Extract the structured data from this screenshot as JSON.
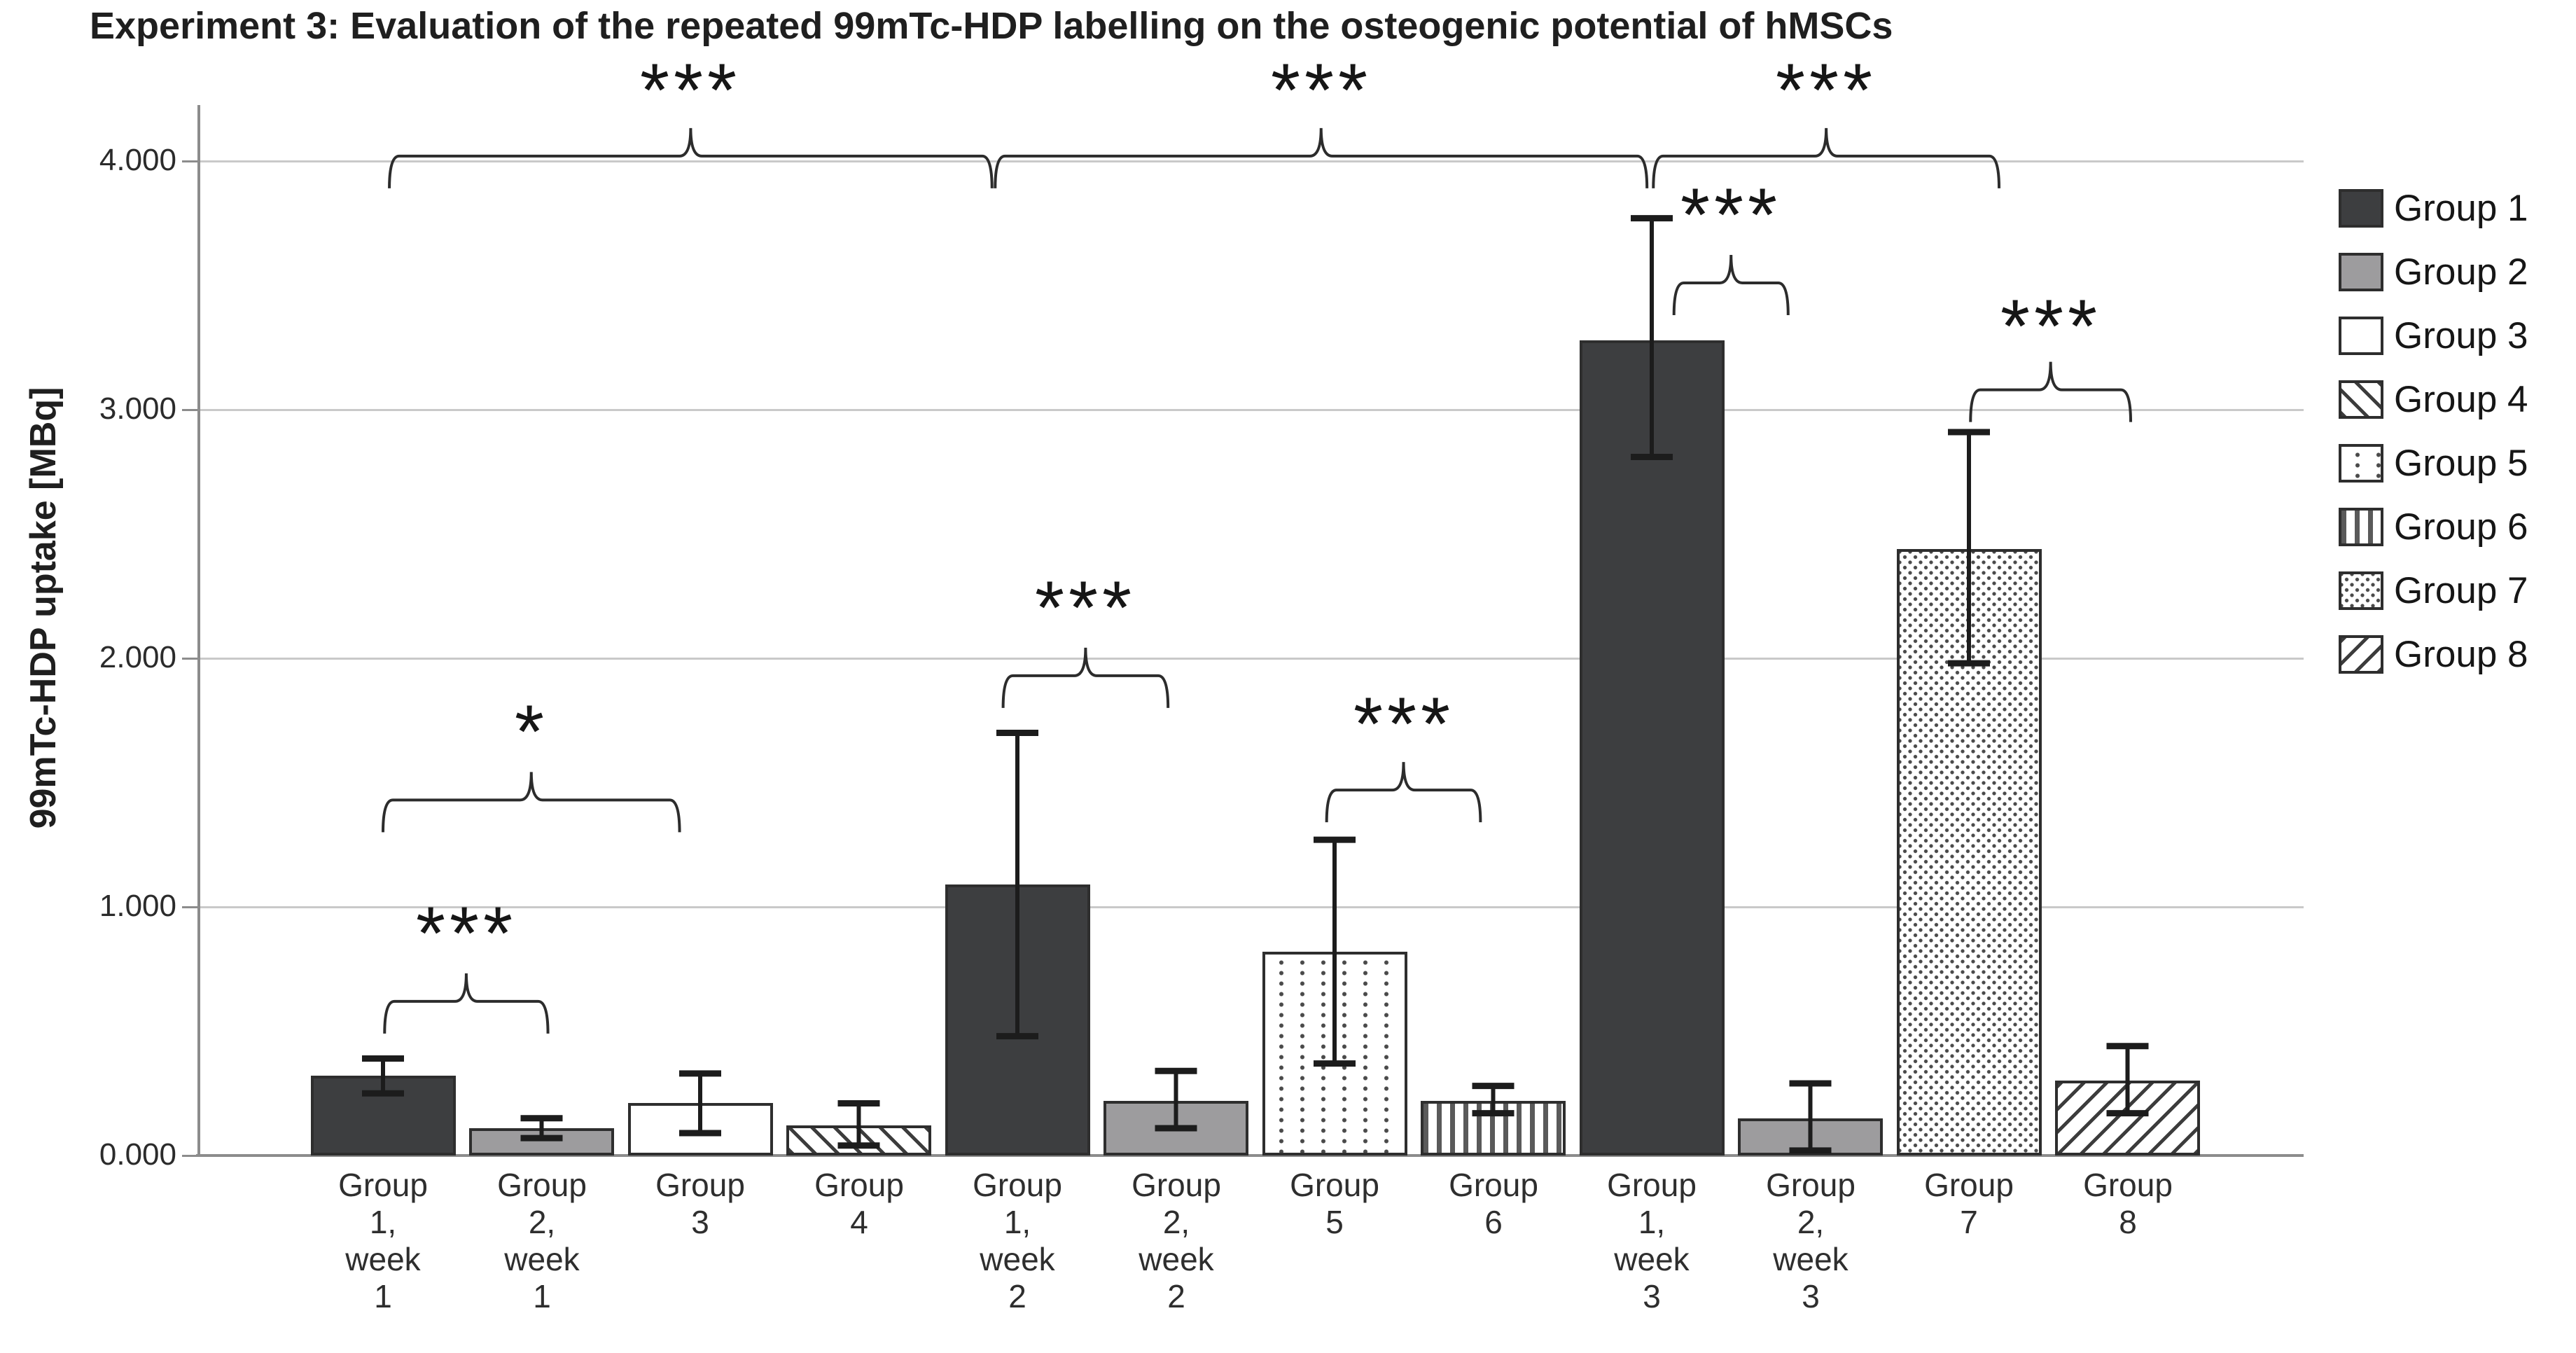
{
  "title": "Experiment 3: Evaluation of the repeated 99mTc-HDP labelling on the osteogenic potential of hMSCs",
  "y_axis": {
    "label": "99mTc-HDP uptake [MBq]"
  },
  "legend": {
    "items": [
      {
        "label": "Group 1",
        "pattern": "g1",
        "swatch": "solid-dark-gray"
      },
      {
        "label": "Group 2",
        "pattern": "g2",
        "swatch": "solid-medium-gray"
      },
      {
        "label": "Group 3",
        "pattern": "g3",
        "swatch": "white"
      },
      {
        "label": "Group 4",
        "pattern": "g4",
        "swatch": "backslash-hatch"
      },
      {
        "label": "Group 5",
        "pattern": "g5",
        "swatch": "sparse-dots"
      },
      {
        "label": "Group 6",
        "pattern": "g6",
        "swatch": "vertical-stripes"
      },
      {
        "label": "Group 7",
        "pattern": "g7",
        "swatch": "dense-dots"
      },
      {
        "label": "Group 8",
        "pattern": "g8",
        "swatch": "forward-slash-hatch"
      }
    ]
  },
  "chart_data": {
    "type": "bar",
    "title": "Experiment 3: Evaluation of the repeated 99mTc-HDP labelling on the osteogenic potential of hMSCs",
    "ylabel": "99mTc-HDP uptake [MBq]",
    "ylim": [
      0,
      4.34
    ],
    "grid": "horizontal",
    "legend_position": "right",
    "yticks": [
      {
        "value": 0,
        "label": "0.000"
      },
      {
        "value": 1,
        "label": "1.000"
      },
      {
        "value": 2,
        "label": "2.000"
      },
      {
        "value": 3,
        "label": "3.000"
      },
      {
        "value": 4,
        "label": "4.000"
      }
    ],
    "bars": [
      {
        "label_lines": [
          "Group",
          "1,",
          "week",
          "1"
        ],
        "group": "Group 1",
        "pattern": "g1",
        "value": 0.32,
        "err_low": 0.25,
        "err_high": 0.39
      },
      {
        "label_lines": [
          "Group",
          "2,",
          "week",
          "1"
        ],
        "group": "Group 2",
        "pattern": "g2",
        "value": 0.11,
        "err_low": 0.07,
        "err_high": 0.15
      },
      {
        "label_lines": [
          "Group",
          "3"
        ],
        "group": "Group 3",
        "pattern": "g3",
        "value": 0.21,
        "err_low": 0.09,
        "err_high": 0.33
      },
      {
        "label_lines": [
          "Group",
          "4"
        ],
        "group": "Group 4",
        "pattern": "g4",
        "value": 0.12,
        "err_low": 0.04,
        "err_high": 0.21
      },
      {
        "label_lines": [
          "Group",
          "1,",
          "week",
          "2"
        ],
        "group": "Group 1",
        "pattern": "g1",
        "value": 1.09,
        "err_low": 0.48,
        "err_high": 1.7
      },
      {
        "label_lines": [
          "Group",
          "2,",
          "week",
          "2"
        ],
        "group": "Group 2",
        "pattern": "g2",
        "value": 0.22,
        "err_low": 0.11,
        "err_high": 0.34
      },
      {
        "label_lines": [
          "Group",
          "5"
        ],
        "group": "Group 5",
        "pattern": "g5",
        "value": 0.82,
        "err_low": 0.37,
        "err_high": 1.27
      },
      {
        "label_lines": [
          "Group",
          "6"
        ],
        "group": "Group 6",
        "pattern": "g6",
        "value": 0.22,
        "err_low": 0.17,
        "err_high": 0.28
      },
      {
        "label_lines": [
          "Group",
          "1,",
          "week",
          "3"
        ],
        "group": "Group 1",
        "pattern": "g1",
        "value": 3.28,
        "err_low": 2.81,
        "err_high": 3.77
      },
      {
        "label_lines": [
          "Group",
          "2,",
          "week",
          "3"
        ],
        "group": "Group 2",
        "pattern": "g2",
        "value": 0.15,
        "err_low": 0.02,
        "err_high": 0.29
      },
      {
        "label_lines": [
          "Group",
          "7"
        ],
        "group": "Group 7",
        "pattern": "g7",
        "value": 2.44,
        "err_low": 1.98,
        "err_high": 2.91
      },
      {
        "label_lines": [
          "Group",
          "8"
        ],
        "group": "Group 8",
        "pattern": "g8",
        "value": 0.3,
        "err_low": 0.17,
        "err_high": 0.44
      }
    ],
    "significance": [
      {
        "label": "***",
        "from_bar": 1.01,
        "to_bar": 2.04,
        "y": 0.62,
        "label_y": 0.88
      },
      {
        "label": "*",
        "from_bar": 1.0,
        "to_bar": 2.87,
        "y": 1.43,
        "label_y": 1.69
      },
      {
        "label": "***",
        "from_bar": 4.91,
        "to_bar": 5.95,
        "y": 1.93,
        "label_y": 2.19
      },
      {
        "label": "***",
        "from_bar": 6.95,
        "to_bar": 7.92,
        "y": 1.47,
        "label_y": 1.72
      },
      {
        "label": "***",
        "from_bar": 9.14,
        "to_bar": 9.86,
        "y": 3.51,
        "label_y": 3.77
      },
      {
        "label": "***",
        "from_bar": 11.01,
        "to_bar": 12.02,
        "y": 3.08,
        "label_y": 3.32
      },
      {
        "label": "***",
        "from_bar": 1.04,
        "to_bar": 4.84,
        "y": 4.02,
        "label_y": 4.27
      },
      {
        "label": "***",
        "from_bar": 4.86,
        "to_bar": 8.97,
        "y": 4.02,
        "label_y": 4.27
      },
      {
        "label": "***",
        "from_bar": 9.01,
        "to_bar": 11.19,
        "y": 4.02,
        "label_y": 4.27
      }
    ],
    "colors": {
      "dark_fill": "#3d3e40",
      "gray_fill": "#9d9c9e",
      "bar_border": "#2e2e2e",
      "gridline": "#c9c9c9",
      "axis": "#8c8c8c",
      "error_bar": "#1c1c1c",
      "text": "#1f1f1f"
    }
  }
}
